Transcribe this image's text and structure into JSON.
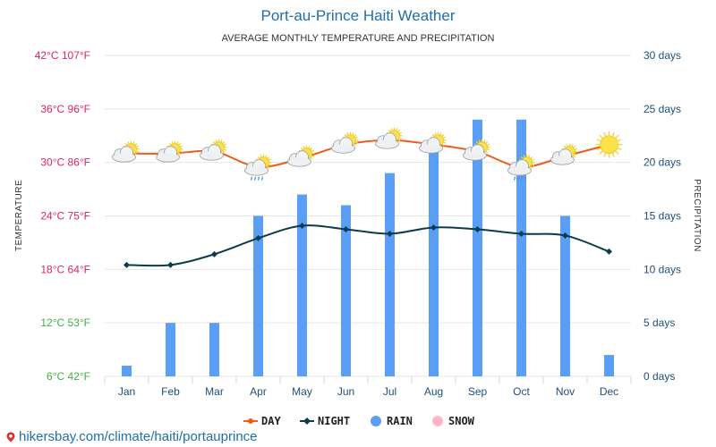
{
  "chart_data": {
    "type": "line+bar",
    "title": "Port-au-Prince Haiti Weather",
    "subtitle": "AVERAGE MONTHLY TEMPERATURE AND PRECIPITATION",
    "ylabel_left": "TEMPERATURE",
    "ylabel_right": "PRECIPITATION",
    "categories": [
      "Jan",
      "Feb",
      "Mar",
      "Apr",
      "May",
      "Jun",
      "Jul",
      "Aug",
      "Sep",
      "Oct",
      "Nov",
      "Dec"
    ],
    "ylim_left": [
      6,
      42
    ],
    "ylim_right": [
      0,
      30
    ],
    "left_ticks": [
      {
        "value": 42,
        "label": "42°C 107°F",
        "color": "#e0245e"
      },
      {
        "value": 36,
        "label": "36°C 96°F",
        "color": "#e0245e"
      },
      {
        "value": 30,
        "label": "30°C 86°F",
        "color": "#e0245e"
      },
      {
        "value": 24,
        "label": "24°C 75°F",
        "color": "#e0245e"
      },
      {
        "value": 18,
        "label": "18°C 64°F",
        "color": "#e0245e"
      },
      {
        "value": 12,
        "label": "12°C 53°F",
        "color": "#3cb043"
      },
      {
        "value": 6,
        "label": "6°C 42°F",
        "color": "#3cb043"
      }
    ],
    "right_ticks": [
      {
        "value": 30,
        "label": "30 days"
      },
      {
        "value": 25,
        "label": "25 days"
      },
      {
        "value": 20,
        "label": "20 days"
      },
      {
        "value": 15,
        "label": "15 days"
      },
      {
        "value": 10,
        "label": "10 days"
      },
      {
        "value": 5,
        "label": "5 days"
      },
      {
        "value": 0,
        "label": "0 days"
      }
    ],
    "series": [
      {
        "name": "DAY",
        "type": "line",
        "axis": "left",
        "color": "#f05a1a",
        "values": [
          31,
          31,
          31.2,
          29.5,
          30.5,
          32,
          32.5,
          32,
          31.2,
          29.5,
          30.7,
          32
        ]
      },
      {
        "name": "NIGHT",
        "type": "line",
        "axis": "left",
        "color": "#0b3c4d",
        "values": [
          18.5,
          18.5,
          19.7,
          21.5,
          22.9,
          22.5,
          22,
          22.7,
          22.5,
          22,
          21.8,
          20
        ]
      },
      {
        "name": "RAIN",
        "type": "bar",
        "axis": "right",
        "color": "#5b9ef5",
        "values": [
          1,
          5,
          5,
          15,
          17,
          16,
          19,
          21,
          24,
          24,
          15,
          2
        ]
      },
      {
        "name": "SNOW",
        "type": "bar",
        "axis": "right",
        "color": "#ffb6c8",
        "values": [
          0,
          0,
          0,
          0,
          0,
          0,
          0,
          0,
          0,
          0,
          0,
          0
        ]
      }
    ],
    "weather_icons": [
      "partly-cloudy-icon",
      "partly-cloudy-icon",
      "partly-cloudy-icon",
      "cloud-rain-icon",
      "partly-cloudy-icon",
      "partly-cloudy-icon",
      "partly-cloudy-icon",
      "partly-cloudy-icon",
      "partly-cloudy-icon",
      "cloud-rain-icon",
      "partly-cloudy-icon",
      "sun-icon"
    ],
    "legend": {
      "position": "bottom",
      "entries": [
        "DAY",
        "NIGHT",
        "RAIN",
        "SNOW"
      ]
    },
    "grid": true
  },
  "footer": {
    "text": "hikersbay.com/climate/haiti/portauprince",
    "icon": "location-pin-icon"
  }
}
